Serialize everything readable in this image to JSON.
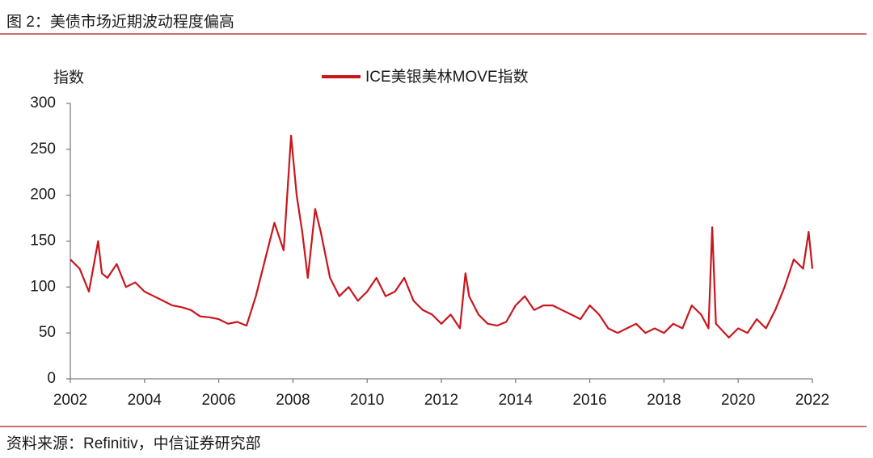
{
  "chart_data": {
    "type": "line",
    "title": "图 2：美债市场近期波动程度偏高",
    "y_label": "指数",
    "source": "资料来源：Refinitiv，中信证券研究部",
    "x": [
      2002.0,
      2002.25,
      2002.5,
      2002.75,
      2002.85,
      2003.0,
      2003.25,
      2003.5,
      2003.75,
      2004.0,
      2004.25,
      2004.5,
      2004.75,
      2005.0,
      2005.25,
      2005.5,
      2005.75,
      2006.0,
      2006.25,
      2006.5,
      2006.75,
      2007.0,
      2007.25,
      2007.5,
      2007.75,
      2007.95,
      2008.1,
      2008.25,
      2008.4,
      2008.6,
      2008.75,
      2009.0,
      2009.25,
      2009.5,
      2009.75,
      2010.0,
      2010.25,
      2010.5,
      2010.75,
      2011.0,
      2011.25,
      2011.5,
      2011.75,
      2012.0,
      2012.25,
      2012.5,
      2012.65,
      2012.75,
      2013.0,
      2013.25,
      2013.5,
      2013.75,
      2014.0,
      2014.25,
      2014.5,
      2014.75,
      2015.0,
      2015.25,
      2015.5,
      2015.75,
      2016.0,
      2016.25,
      2016.5,
      2016.75,
      2017.0,
      2017.25,
      2017.5,
      2017.75,
      2018.0,
      2018.25,
      2018.5,
      2018.75,
      2019.0,
      2019.2,
      2019.3,
      2019.4,
      2019.75,
      2020.0,
      2020.25,
      2020.5,
      2020.75,
      2021.0,
      2021.25,
      2021.5,
      2021.75,
      2021.9,
      2022.0
    ],
    "series": [
      {
        "name": "ICE美银美林MOVE指数",
        "color": "#c8161d",
        "values": [
          130,
          120,
          95,
          150,
          115,
          110,
          125,
          100,
          105,
          95,
          90,
          85,
          80,
          78,
          75,
          68,
          67,
          65,
          60,
          62,
          58,
          90,
          130,
          170,
          140,
          265,
          200,
          160,
          110,
          185,
          160,
          110,
          90,
          100,
          85,
          95,
          110,
          90,
          95,
          110,
          85,
          75,
          70,
          60,
          70,
          55,
          115,
          90,
          70,
          60,
          58,
          62,
          80,
          90,
          75,
          80,
          80,
          75,
          70,
          65,
          80,
          70,
          55,
          50,
          55,
          60,
          50,
          55,
          50,
          60,
          55,
          80,
          70,
          55,
          165,
          60,
          45,
          55,
          50,
          65,
          55,
          75,
          100,
          130,
          120,
          160,
          120
        ]
      }
    ],
    "xlim": [
      2002,
      2022
    ],
    "xticks": [
      2002,
      2004,
      2006,
      2008,
      2010,
      2012,
      2014,
      2016,
      2018,
      2020,
      2022
    ],
    "ylim": [
      0,
      300
    ],
    "yticks": [
      0,
      50,
      100,
      150,
      200,
      250,
      300
    ]
  }
}
